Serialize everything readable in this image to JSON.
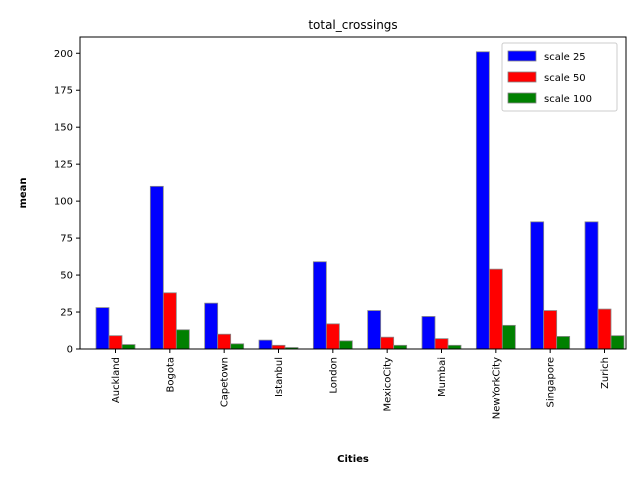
{
  "chart_data": {
    "type": "bar",
    "title": "total_crossings",
    "xlabel": "Cities",
    "ylabel": "mean",
    "categories": [
      "Auckland",
      "Bogota",
      "Capetown",
      "Istanbul",
      "London",
      "MexicoCity",
      "Mumbai",
      "NewYorkCity",
      "Singapore",
      "Zurich"
    ],
    "series": [
      {
        "name": "scale 25",
        "color": "#0000ff",
        "values": [
          28,
          110,
          31,
          6,
          59,
          26,
          22,
          201,
          86,
          86
        ]
      },
      {
        "name": "scale 50",
        "color": "#ff0000",
        "values": [
          9,
          38,
          10,
          2.5,
          17,
          8,
          7,
          54,
          26,
          27
        ]
      },
      {
        "name": "scale 100",
        "color": "#008000",
        "values": [
          3,
          13,
          3.5,
          1,
          5.5,
          2.5,
          2.5,
          16,
          8.5,
          9
        ]
      }
    ],
    "ylim": [
      0,
      211
    ],
    "yticks": [
      0,
      25,
      50,
      75,
      100,
      125,
      150,
      175,
      200
    ],
    "grid": false,
    "legend_position": "top-right"
  }
}
